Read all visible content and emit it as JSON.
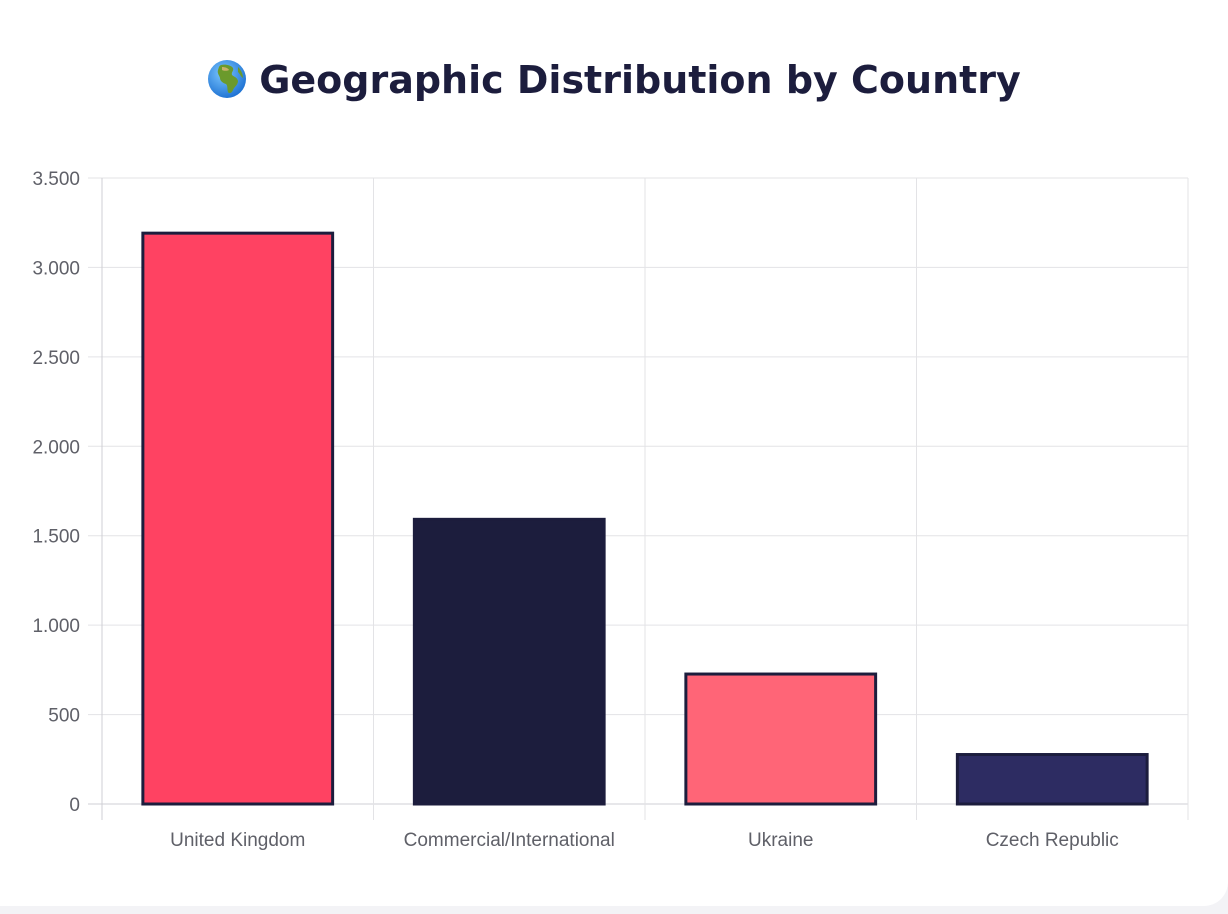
{
  "title": {
    "icon": "globe-africa-icon",
    "text": "Geographic Distribution by Country"
  },
  "chart_data": {
    "type": "bar",
    "title": "Geographic Distribution by Country",
    "categories": [
      "United Kingdom",
      "Commercial/International",
      "Ukraine",
      "Czech Republic"
    ],
    "values": [
      3200,
      1600,
      735,
      285
    ],
    "ylim": [
      0,
      3500
    ],
    "yticks": [
      0,
      500,
      1000,
      1500,
      2000,
      2500,
      3000,
      3500
    ],
    "ytick_labels": [
      "0",
      "500",
      "1.000",
      "1.500",
      "2.000",
      "2.500",
      "3.000",
      "3.500"
    ],
    "xlabel": "",
    "ylabel": "",
    "grid": true,
    "legend": "none",
    "bar_colors": [
      "#ff4262",
      "#1c1d3d",
      "#ff6577",
      "#2d2c62"
    ],
    "bar_border_color": "#1c1d3d",
    "grid_color": "#e3e3e6"
  }
}
